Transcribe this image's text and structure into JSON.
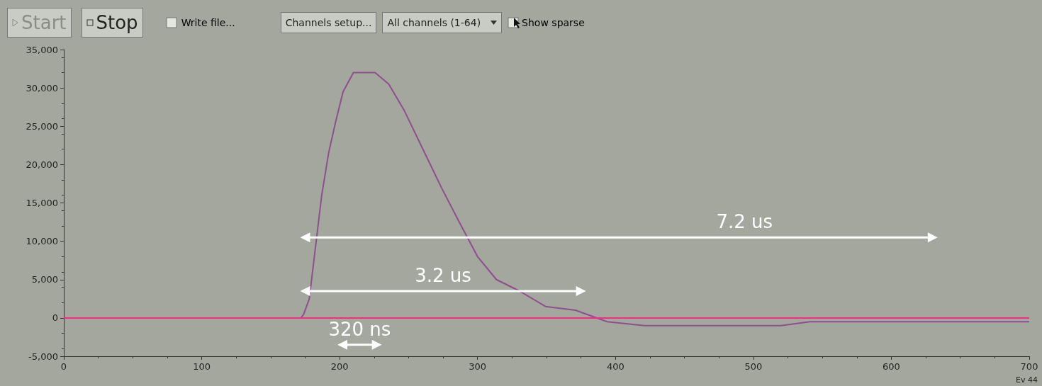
{
  "chart_data": {
    "type": "line",
    "series": [
      {
        "color": "#8e4f8e",
        "marker": "none",
        "x": [
          0,
          172,
          174,
          178,
          183,
          187,
          192,
          197,
          202.5,
          210,
          225.7,
          235.6,
          247,
          260.4,
          273.8,
          286.7,
          300,
          313.7,
          330.5,
          349.2,
          371,
          394,
          421,
          520,
          541,
          608,
          636,
          680,
          685,
          700
        ],
        "values": [
          0,
          0,
          500,
          2500,
          10000,
          16000,
          21500,
          25500,
          29500,
          32000,
          32000,
          30500,
          27000,
          22000,
          17000,
          12500,
          8000,
          5000,
          3500,
          1500,
          1000,
          -500,
          -1000,
          -1000,
          -500,
          -500,
          -500,
          -500,
          -500,
          -500
        ]
      },
      {
        "color": "#ffffff",
        "marker": "triangle",
        "x": [
          175,
          630
        ],
        "values": [
          10500,
          10500
        ]
      },
      {
        "color": "#ffffff",
        "marker": "triangle",
        "x": [
          175,
          375
        ],
        "values": [
          3500,
          3500
        ]
      },
      {
        "color": "#ffffff",
        "marker": "triangle",
        "x": [
          202,
          227
        ],
        "values": [
          -3500,
          -3500
        ]
      }
    ],
    "xlim": [
      0,
      700
    ],
    "xticks": [
      0,
      100,
      200,
      300,
      400,
      500,
      600,
      700
    ],
    "ylim": [
      -5000,
      35000
    ],
    "yticks": [
      {
        "value": -5000,
        "label": "-5,000"
      },
      0,
      {
        "value": 5000,
        "label": "5,000"
      },
      {
        "value": 10000,
        "label": "10,000"
      },
      {
        "value": 15000,
        "label": "15,000"
      },
      {
        "value": 20000,
        "label": "20,000"
      },
      {
        "value": 25000,
        "label": "25,000"
      },
      {
        "value": 30000,
        "label": "30,000"
      },
      {
        "value": 35000,
        "label": "35,000"
      }
    ],
    "ref_lines": [
      {
        "axis": "y",
        "value": 0,
        "color": "#ff2a7f"
      }
    ],
    "annotations": [
      "Start",
      "Stop",
      "Write file...",
      "Channels setup...",
      "All channels (1-64)",
      "Show sparse",
      "Ev 44",
      "7.2 us",
      "3.2 us",
      "320 ns"
    ]
  }
}
